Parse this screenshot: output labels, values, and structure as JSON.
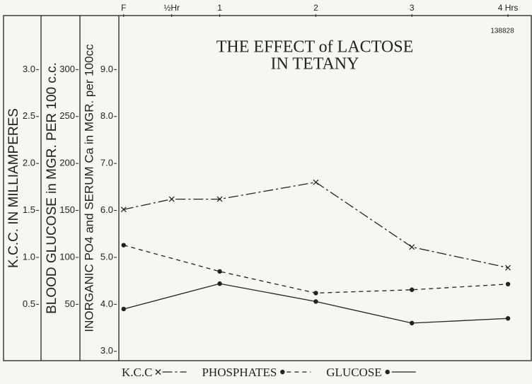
{
  "chart_data": {
    "type": "line",
    "title": [
      "THE EFFECT of LACTOSE",
      "IN TETANY"
    ],
    "annotation": "138828",
    "y_label": "INORGANIC PO4 and SERUM Ca in MGR. per 100cc",
    "y2_label": "BLOOD GLUCOSE in MGR. PER 100 c.c.",
    "y3_label": "K.C.C. IN MILLIAMPERES",
    "xlim": [
      -0.05,
      4.25
    ],
    "xticks": [
      {
        "value": 0,
        "label": "F"
      },
      {
        "value": 0.5,
        "label": "½Hr"
      },
      1,
      2,
      3,
      {
        "value": 4,
        "label": "4 Hrs"
      }
    ],
    "ylim": [
      2.8,
      10.15
    ],
    "yticks": [
      {
        "value": 3,
        "label": "3.0"
      },
      {
        "value": 4,
        "label": "4.0"
      },
      {
        "value": 5,
        "label": "5.0"
      },
      {
        "value": 6,
        "label": "6.0"
      },
      {
        "value": 7,
        "label": "7.0"
      },
      {
        "value": 8,
        "label": "8.0"
      },
      {
        "value": 9,
        "label": "9.0"
      }
    ],
    "y2lim": [
      -10,
      357.5
    ],
    "y2ticks": [
      50,
      100,
      150,
      200,
      250,
      300
    ],
    "y3lim": [
      -0.1,
      3.575
    ],
    "y3ticks": [
      {
        "value": 0.5,
        "label": "0.5"
      },
      {
        "value": 1,
        "label": "1.0"
      },
      {
        "value": 1.5,
        "label": "1.5"
      },
      {
        "value": 2,
        "label": "2.0"
      },
      {
        "value": 2.5,
        "label": "2.5"
      },
      {
        "value": 3,
        "label": "3.0"
      }
    ],
    "series": [
      {
        "name": "K.C.C",
        "color": "#222222",
        "axis": "y3",
        "marker": "x",
        "dash": "14 4 3 4",
        "x": [
          0,
          0.5,
          1,
          2,
          3,
          4
        ],
        "values": [
          1.51,
          1.62,
          1.62,
          1.8,
          1.11,
          0.89
        ]
      },
      {
        "name": "PHOSPHATES",
        "color": "#222222",
        "axis": "y",
        "marker": "dot",
        "dash": "6 5",
        "x": [
          0,
          1,
          2,
          3,
          4
        ],
        "values": [
          5.26,
          4.7,
          4.24,
          4.31,
          4.43
        ]
      },
      {
        "name": "GLUCOSE",
        "color": "#222222",
        "axis": "y2",
        "marker": "dot",
        "dash": "none",
        "x": [
          0,
          1,
          2,
          3,
          4
        ],
        "values": [
          45,
          72,
          53,
          30,
          35
        ]
      }
    ]
  }
}
